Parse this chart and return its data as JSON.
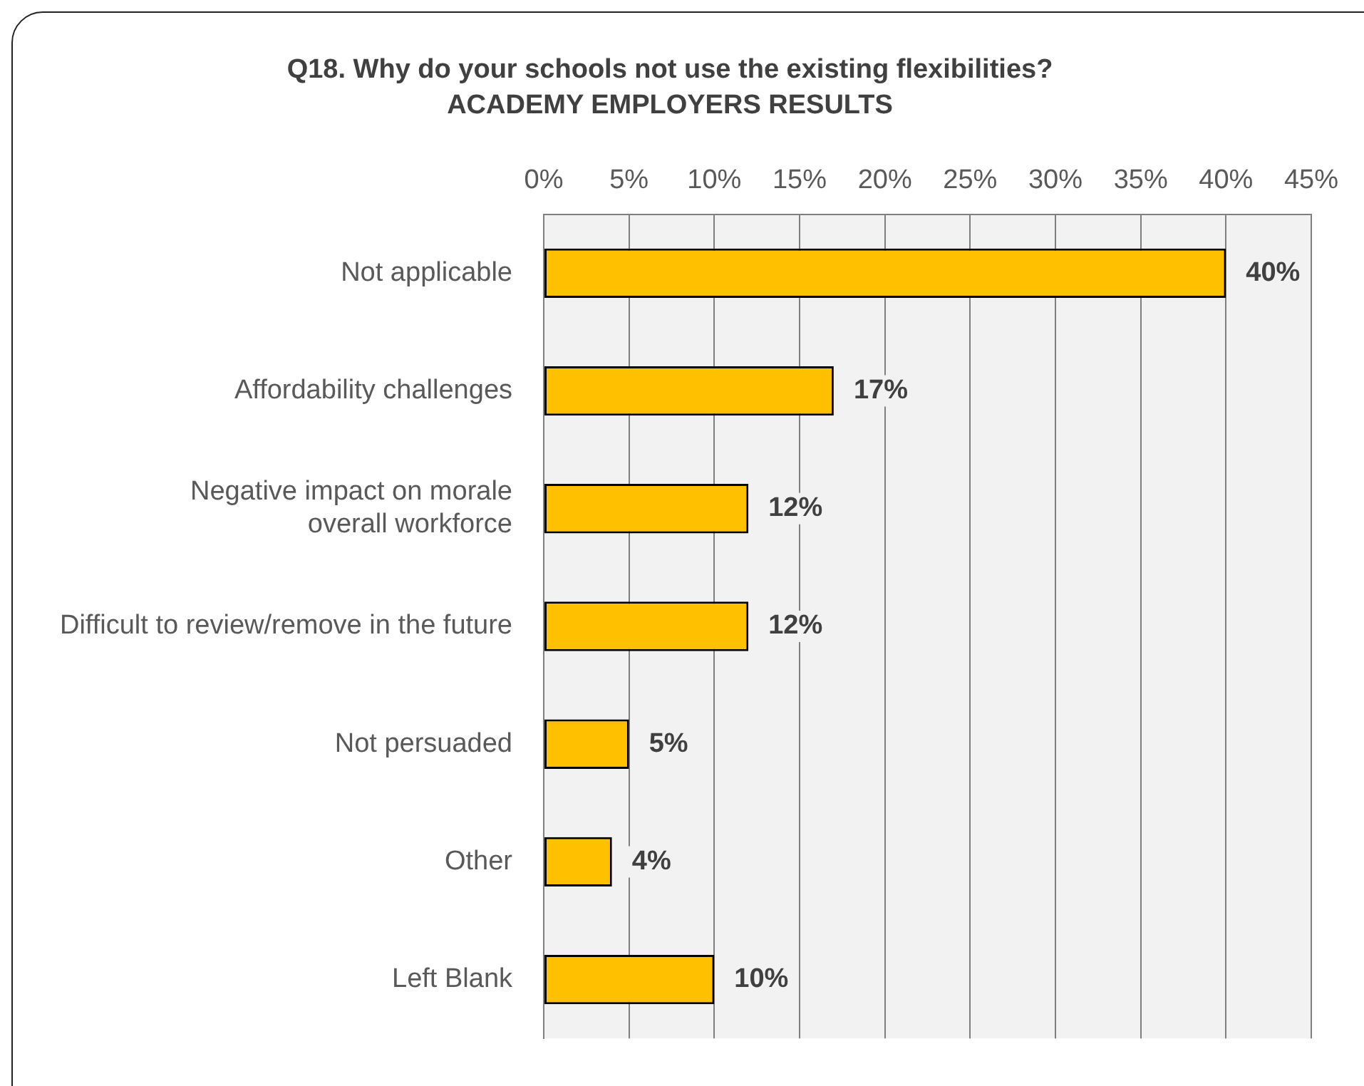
{
  "chart_data": {
    "type": "bar",
    "orientation": "horizontal",
    "title": "Q18. Why do your schools not use the existing flexibilities?",
    "subtitle": "ACADEMY EMPLOYERS RESULTS",
    "categories": [
      "Not applicable",
      "Affordability challenges",
      "Negative impact on morale overall workforce",
      "Difficult to review/remove in the future",
      "Not persuaded",
      "Other",
      "Left Blank"
    ],
    "values": [
      40,
      17,
      12,
      12,
      5,
      4,
      10
    ],
    "value_labels": [
      "40%",
      "17%",
      "12%",
      "12%",
      "5%",
      "4%",
      "10%"
    ],
    "color": "#ffc000",
    "xlim": [
      0,
      45
    ],
    "xticks": [
      {
        "value": 0,
        "label": "0%"
      },
      {
        "value": 5,
        "label": "5%"
      },
      {
        "value": 10,
        "label": "10%"
      },
      {
        "value": 15,
        "label": "15%"
      },
      {
        "value": 20,
        "label": "20%"
      },
      {
        "value": 25,
        "label": "25%"
      },
      {
        "value": 30,
        "label": "30%"
      },
      {
        "value": 35,
        "label": "35%"
      },
      {
        "value": 40,
        "label": "40%"
      },
      {
        "value": 45,
        "label": "45%"
      }
    ],
    "grid": "x",
    "legend": false
  }
}
